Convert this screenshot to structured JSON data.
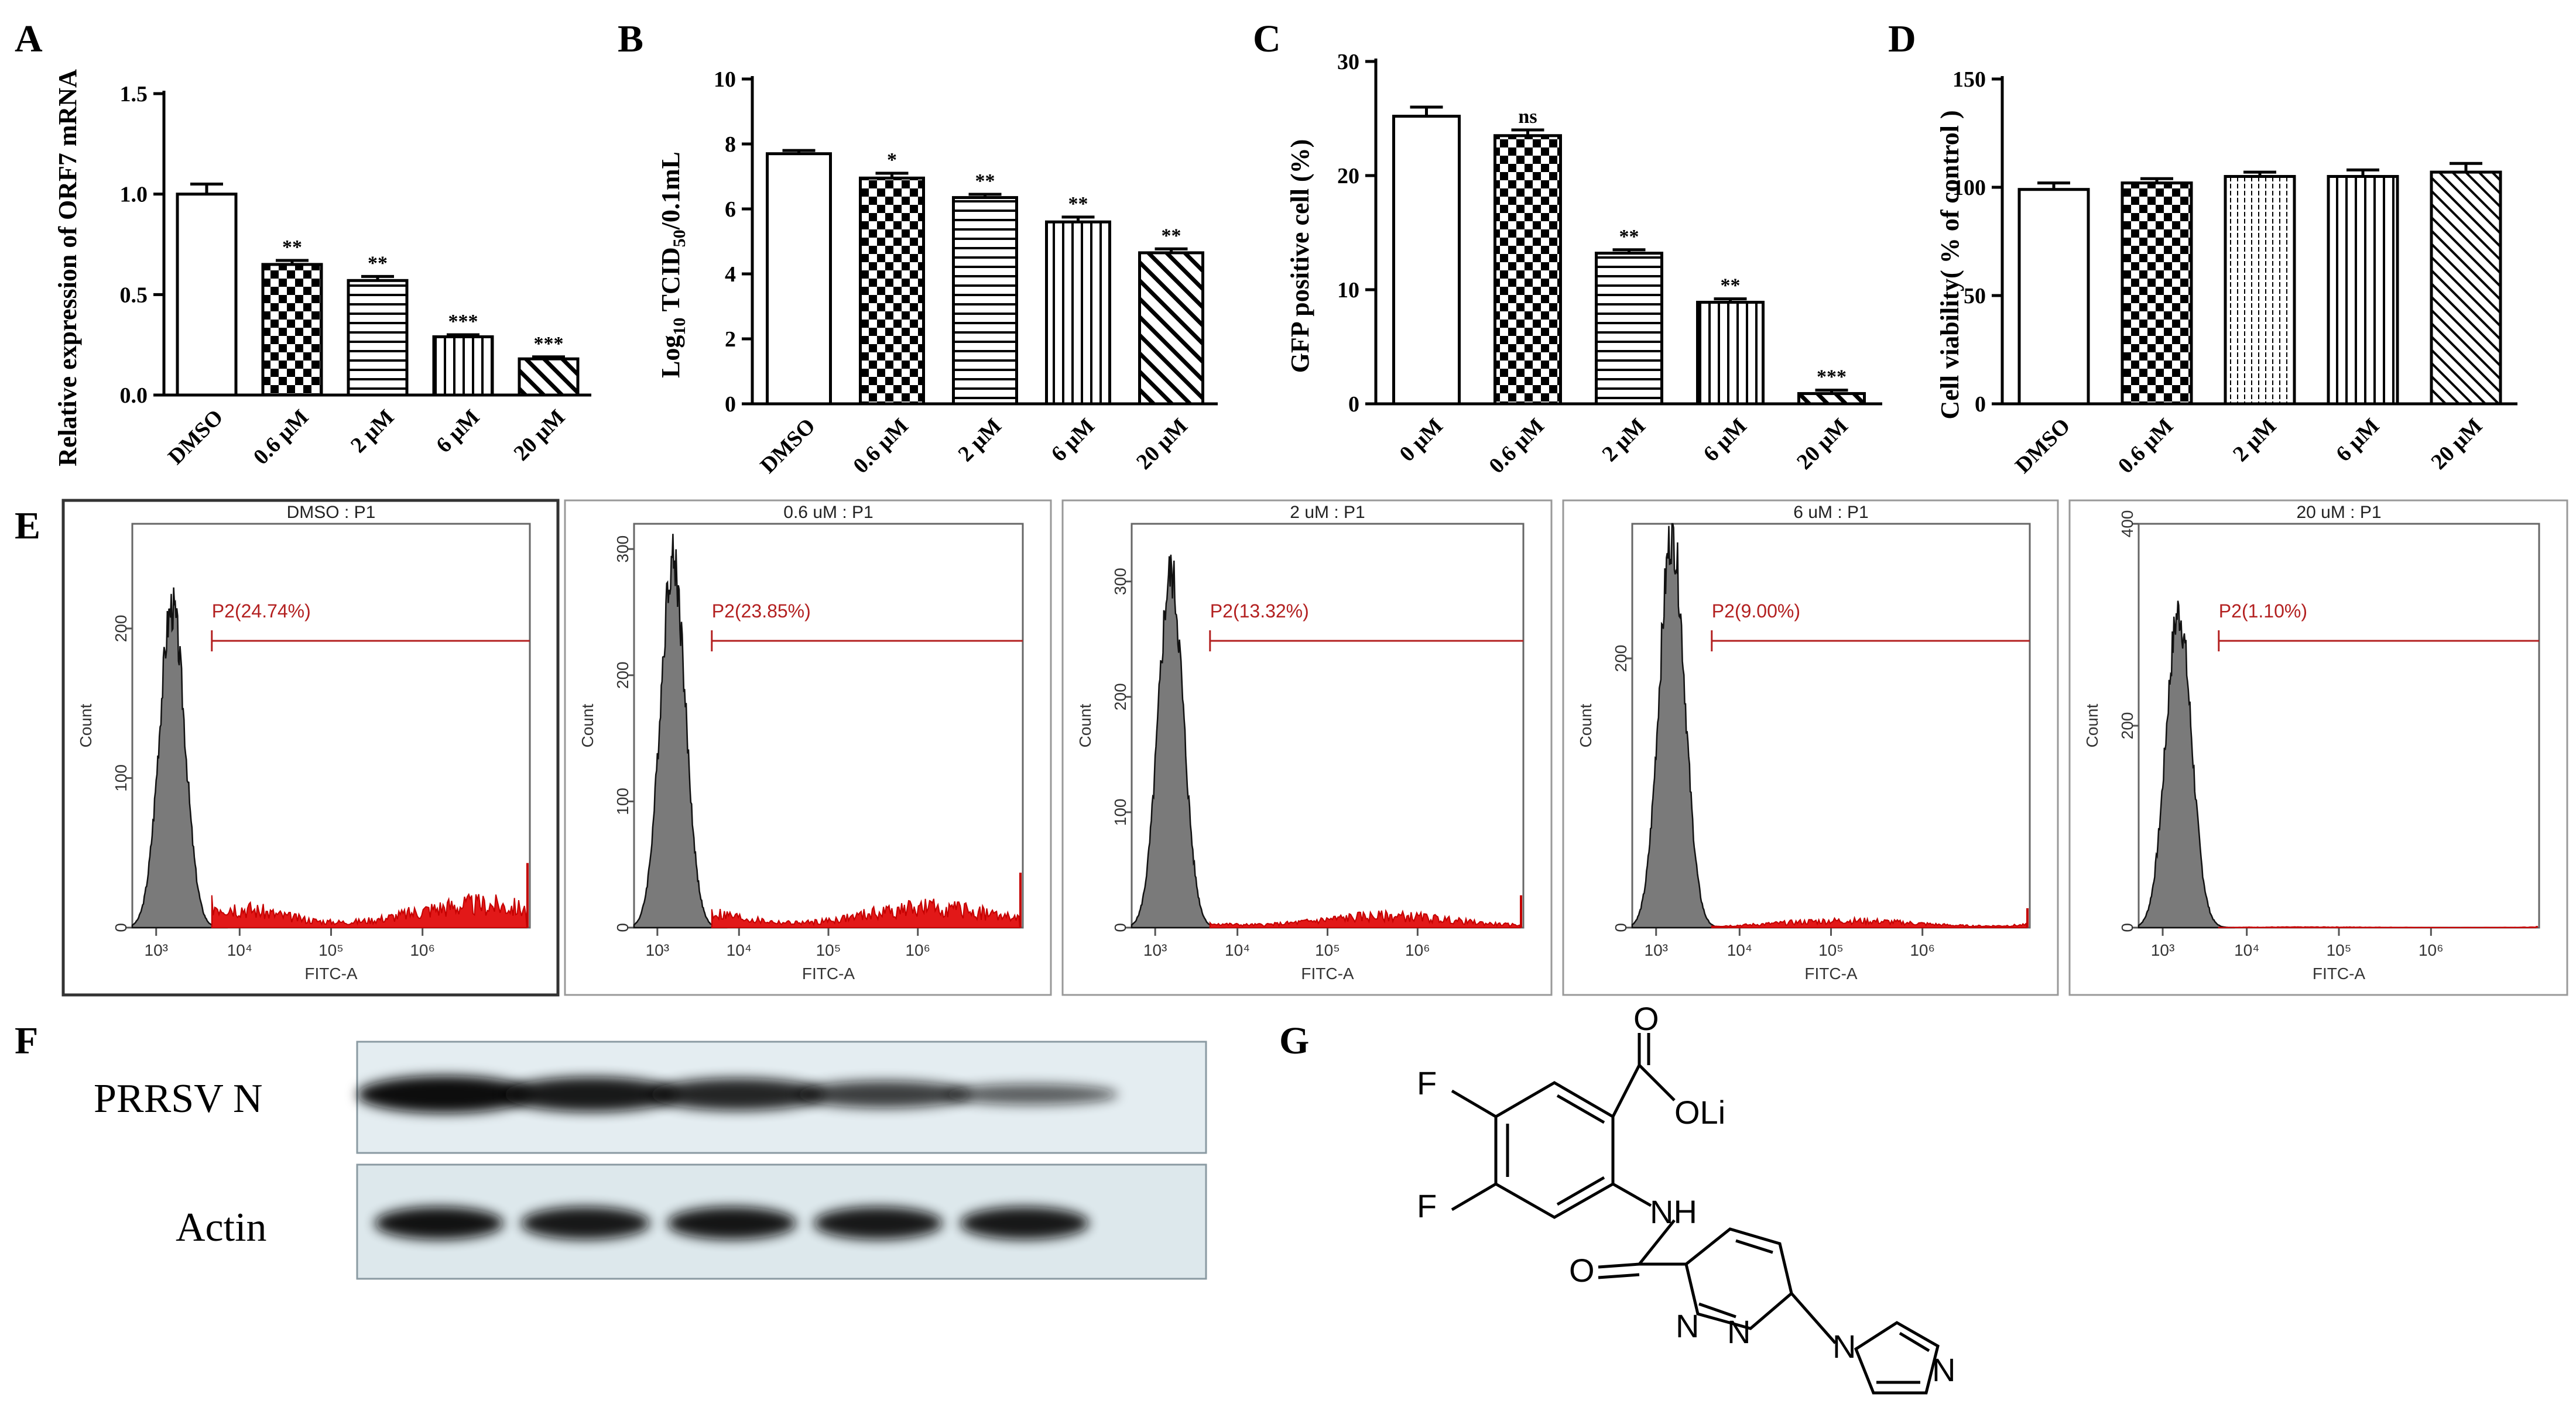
{
  "panels": {
    "A": "A",
    "B": "B",
    "C": "C",
    "D": "D",
    "E": "E",
    "F": "F",
    "G": "G"
  },
  "chart_data": [
    {
      "id": "A",
      "type": "bar",
      "ylabel": "Relative expression of ORF7 mRNA",
      "categories": [
        "DMSO",
        "0.6 μM",
        "2 μM",
        "6 μM",
        "20 μM"
      ],
      "values": [
        1.0,
        0.65,
        0.57,
        0.29,
        0.18
      ],
      "errors": [
        0.05,
        0.02,
        0.02,
        0.01,
        0.01
      ],
      "significance": [
        "",
        "**",
        "**",
        "***",
        "***"
      ],
      "ylim": [
        0,
        1.5
      ],
      "yticks": [
        "0.0",
        "0.5",
        "1.0",
        "1.5"
      ],
      "ytick_values": [
        0,
        0.5,
        1.0,
        1.5
      ]
    },
    {
      "id": "B",
      "type": "bar",
      "ylabel_main": "Log",
      "ylabel_sub1": "10",
      "ylabel_mid": " TCID",
      "ylabel_sub2": "50",
      "ylabel_end": "/0.1mL",
      "categories": [
        "DMSO",
        "0.6 μM",
        "2 μM",
        "6 μM",
        "20 μM"
      ],
      "values": [
        7.7,
        6.95,
        6.35,
        5.6,
        4.65
      ],
      "errors": [
        0.1,
        0.15,
        0.1,
        0.15,
        0.12
      ],
      "significance": [
        "",
        "*",
        "**",
        "**",
        "**"
      ],
      "ylim": [
        0,
        10
      ],
      "yticks": [
        "0",
        "2",
        "4",
        "6",
        "8",
        "10"
      ],
      "ytick_values": [
        0,
        2,
        4,
        6,
        8,
        10
      ]
    },
    {
      "id": "C",
      "type": "bar",
      "ylabel": "GFP positive cell (%)",
      "categories": [
        "0 μM",
        "0.6 μM",
        "2 μM",
        "6 μM",
        "20 μM"
      ],
      "values": [
        25.2,
        23.5,
        13.2,
        8.9,
        0.9
      ],
      "errors": [
        0.8,
        0.5,
        0.3,
        0.3,
        0.3
      ],
      "significance": [
        "",
        "ns",
        "**",
        "**",
        "***"
      ],
      "ylim": [
        0,
        30
      ],
      "yticks": [
        "0",
        "10",
        "20",
        "30"
      ],
      "ytick_values": [
        0,
        10,
        20,
        30
      ]
    },
    {
      "id": "D",
      "type": "bar",
      "ylabel": "Cell viability( % of  control )",
      "categories": [
        "DMSO",
        "0.6 μM",
        "2 μM",
        "6 μM",
        "20 μM"
      ],
      "values": [
        99,
        102,
        105,
        105,
        107
      ],
      "errors": [
        3,
        2,
        2,
        3,
        4
      ],
      "significance": [
        "",
        "",
        "",
        "",
        ""
      ],
      "ylim": [
        0,
        150
      ],
      "yticks": [
        "0",
        "50",
        "100",
        "150"
      ],
      "ytick_values": [
        0,
        50,
        100,
        150
      ]
    }
  ],
  "flow": {
    "xlabel": "FITC-A",
    "ylabel": "Count",
    "xticks": [
      "10³",
      "10⁴",
      "10⁵",
      "10⁶"
    ],
    "panels": [
      {
        "title": "DMSO : P1",
        "gate": "P2(24.74%)",
        "yticks": [
          "0",
          "100",
          "200"
        ],
        "ymax": 270,
        "peak": 220,
        "tail": 0.2
      },
      {
        "title": "0.6 uM : P1",
        "gate": "P2(23.85%)",
        "yticks": [
          "0",
          "100",
          "200",
          "300"
        ],
        "ymax": 320,
        "peak": 300,
        "tail": 0.17
      },
      {
        "title": "2 uM : P1",
        "gate": "P2(13.32%)",
        "yticks": [
          "0",
          "100",
          "200",
          "300"
        ],
        "ymax": 350,
        "peak": 315,
        "tail": 0.1
      },
      {
        "title": "6 uM : P1",
        "gate": "P2(9.00%)",
        "yticks": [
          "0",
          "200"
        ],
        "ymax": 300,
        "peak": 300,
        "tail": 0.06
      },
      {
        "title": "20 uM : P1",
        "gate": "P2(1.10%)",
        "yticks": [
          "0",
          "200",
          "400"
        ],
        "ymax": 400,
        "peak": 320,
        "tail": 0.005
      }
    ]
  },
  "western": {
    "labels": [
      "PRRSV  N",
      "Actin"
    ],
    "n_intensity": [
      1.0,
      0.9,
      0.8,
      0.6,
      0.35
    ],
    "actin_intensity": [
      0.95,
      0.9,
      0.92,
      0.9,
      0.9
    ]
  },
  "chem": {
    "atoms": [
      "F",
      "F",
      "O",
      "OLi",
      "NH",
      "O",
      "N",
      "N",
      "N",
      "N"
    ]
  }
}
